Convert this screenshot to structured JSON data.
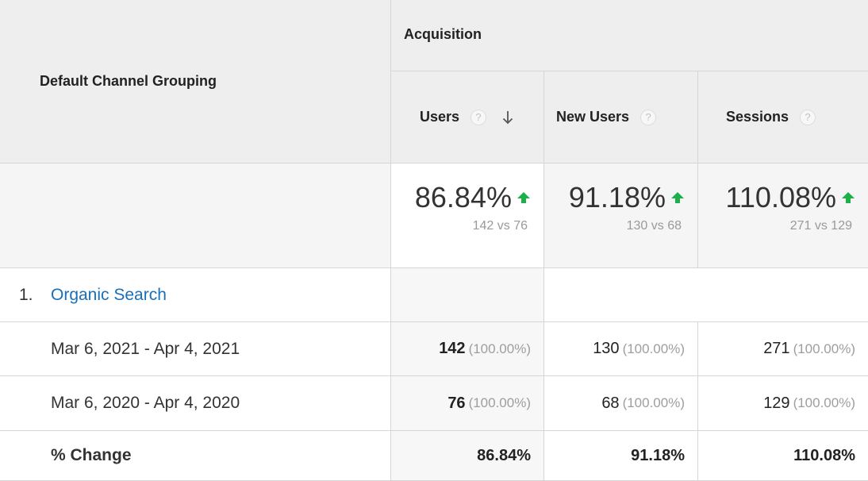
{
  "header": {
    "dimension": "Default Channel Grouping",
    "group": "Acquisition",
    "help_glyph": "?",
    "metrics": [
      {
        "label": "Users",
        "sorted": true
      },
      {
        "label": "New Users",
        "sorted": false
      },
      {
        "label": "Sessions",
        "sorted": false
      }
    ]
  },
  "summary": [
    {
      "percent": "86.84%",
      "comparison": "142 vs 76"
    },
    {
      "percent": "91.18%",
      "comparison": "130 vs 68"
    },
    {
      "percent": "110.08%",
      "comparison": "271 vs 129"
    }
  ],
  "rows": {
    "channel": {
      "index": "1.",
      "name": "Organic Search"
    },
    "period1": {
      "label": "Mar 6, 2021 - Apr 4, 2021",
      "values": [
        {
          "num": "142",
          "pct": "(100.00%)"
        },
        {
          "num": "130",
          "pct": "(100.00%)"
        },
        {
          "num": "271",
          "pct": "(100.00%)"
        }
      ]
    },
    "period2": {
      "label": "Mar 6, 2020 - Apr 4, 2020",
      "values": [
        {
          "num": "76",
          "pct": "(100.00%)"
        },
        {
          "num": "68",
          "pct": "(100.00%)"
        },
        {
          "num": "129",
          "pct": "(100.00%)"
        }
      ]
    },
    "change": {
      "label": "% Change",
      "values": [
        "86.84%",
        "91.18%",
        "110.08%"
      ]
    }
  },
  "colors": {
    "up_arrow": "#1db04a",
    "link": "#1a6fb7",
    "header_bg": "#eeeeee"
  },
  "icons": {
    "help": "question-circle-icon",
    "sort": "sort-down-arrow-icon",
    "trend": "up-arrow-icon"
  }
}
